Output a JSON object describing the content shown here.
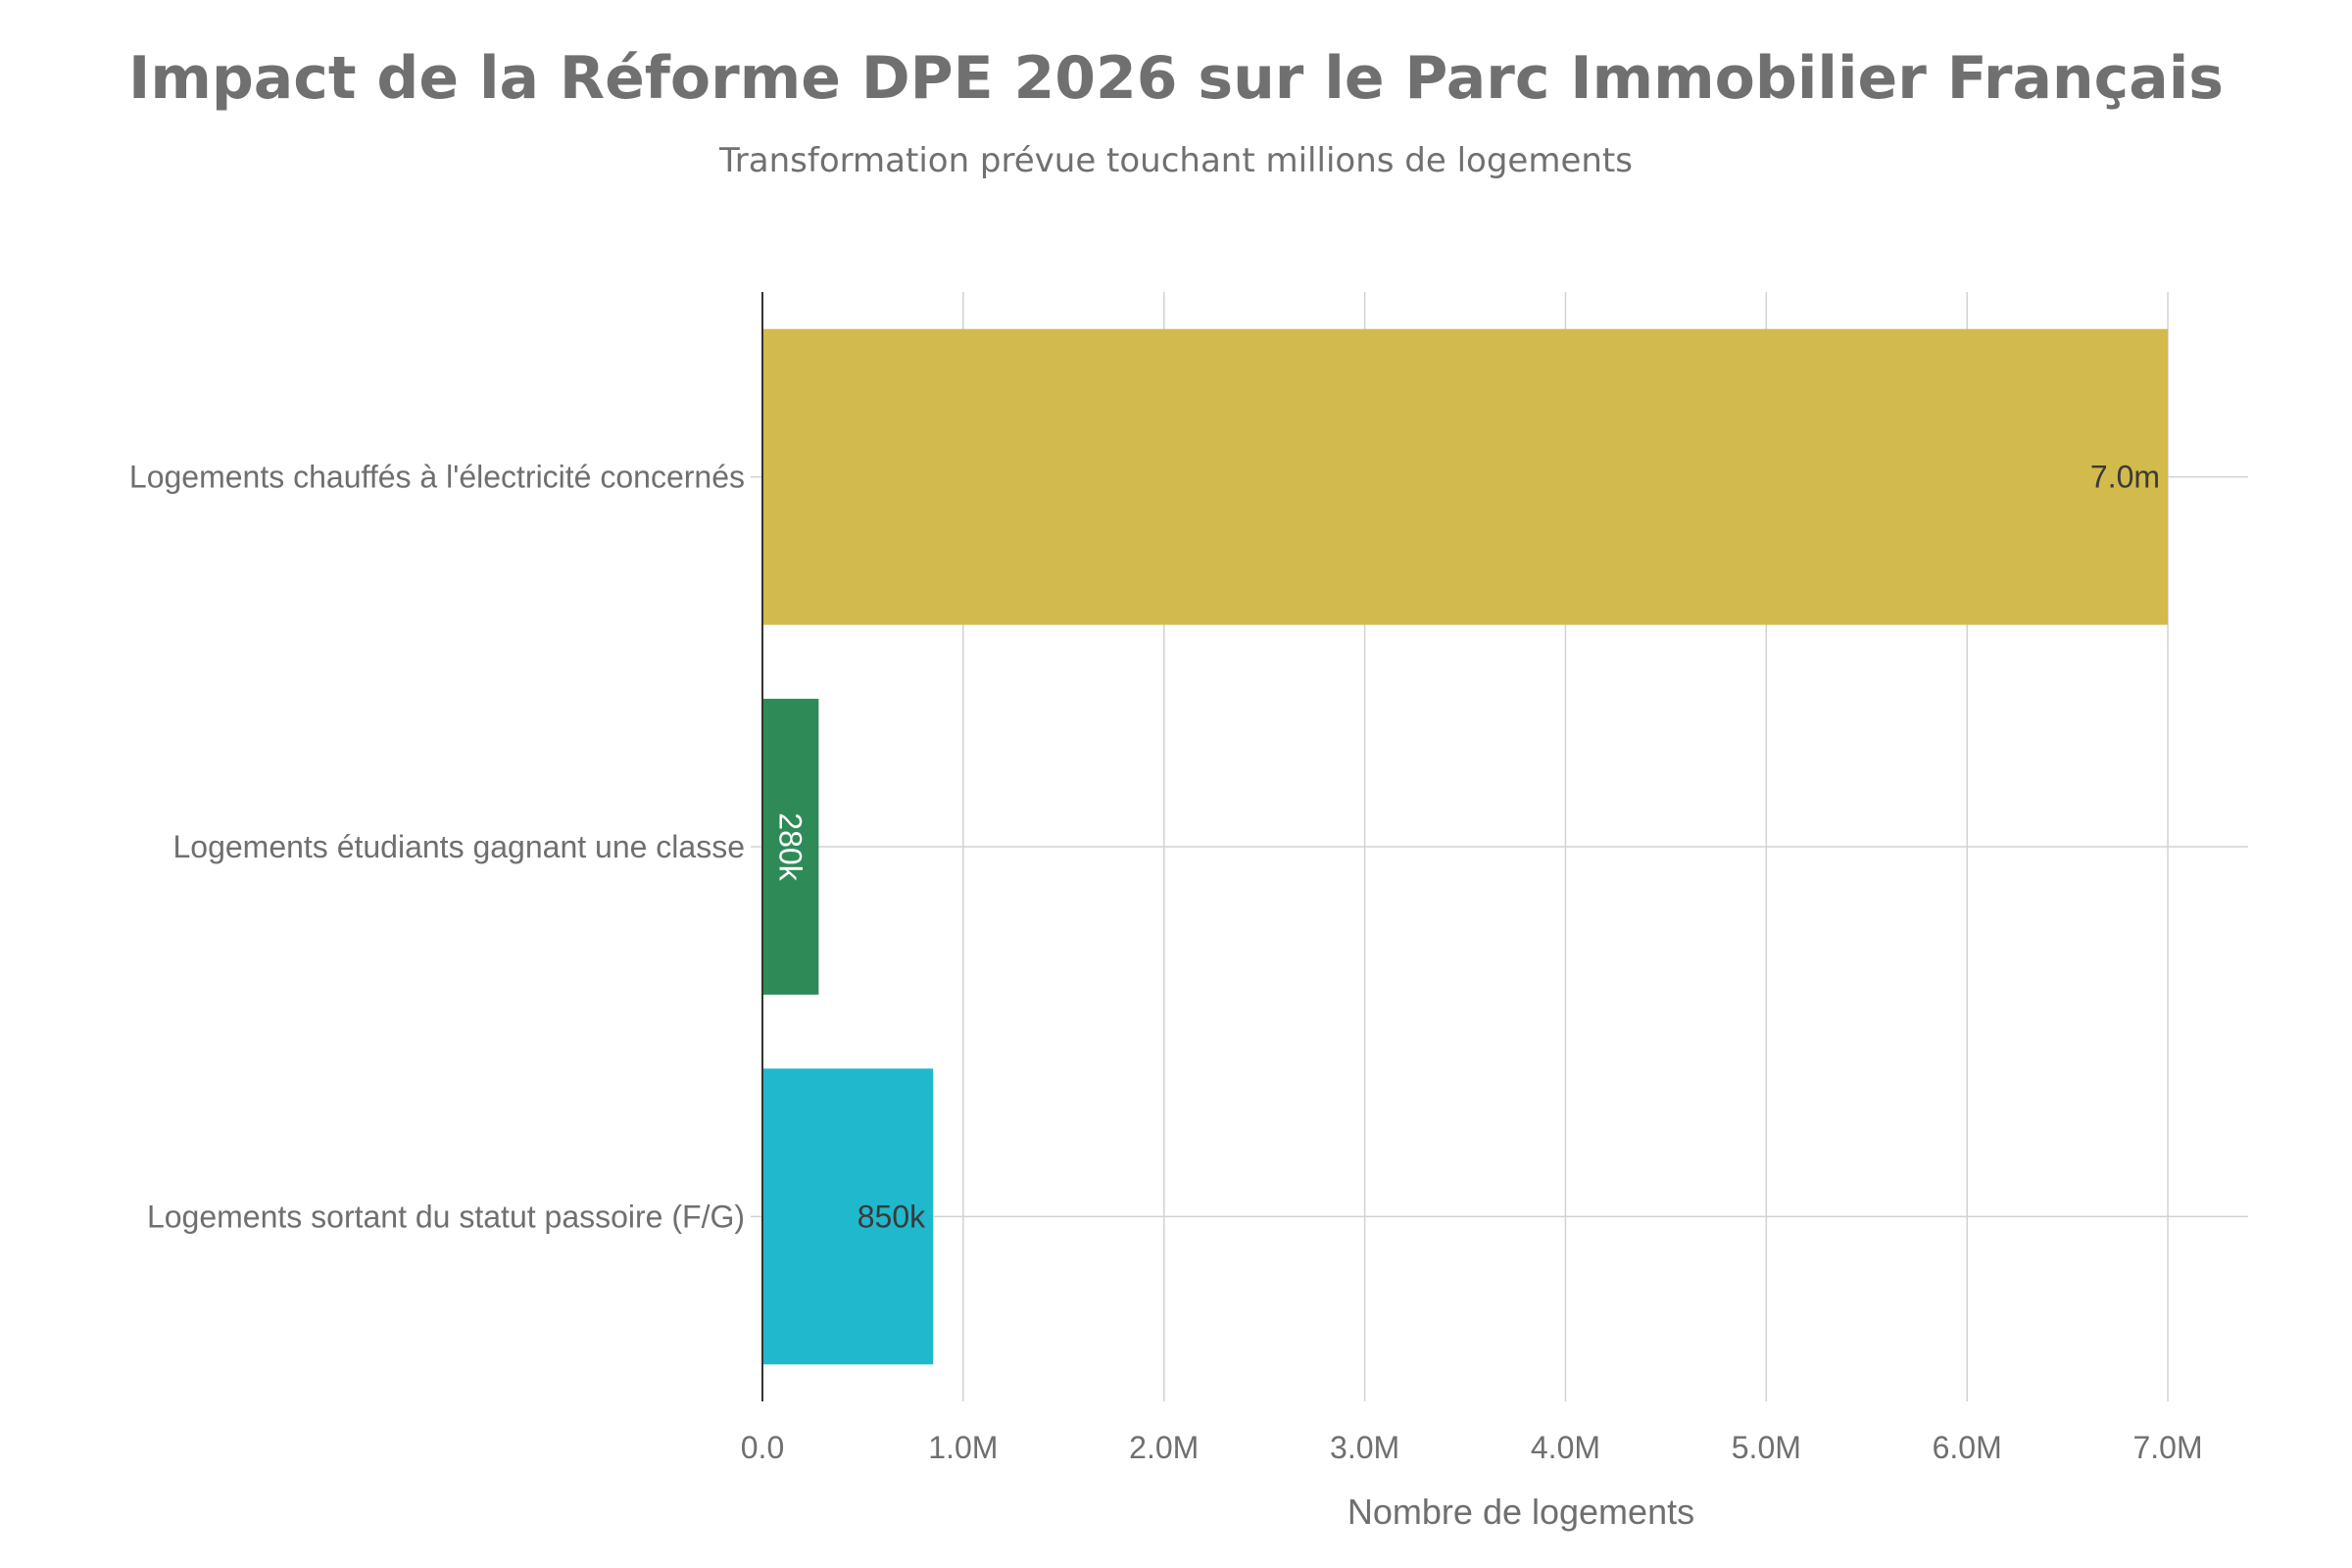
{
  "chart_data": {
    "type": "bar",
    "orientation": "horizontal",
    "title": "Impact de la Réforme DPE 2026 sur le Parc Immobilier Français",
    "subtitle": "Transformation prévue touchant millions de logements",
    "xlabel": "Nombre de logements",
    "ylabel": "",
    "xlim": [
      0,
      7400000
    ],
    "x_ticks": [
      0,
      1000000,
      2000000,
      3000000,
      4000000,
      5000000,
      6000000,
      7000000
    ],
    "x_tick_labels": [
      "0.0",
      "1.0M",
      "2.0M",
      "3.0M",
      "4.0M",
      "5.0M",
      "6.0M",
      "7.0M"
    ],
    "grid": true,
    "categories": [
      "Logements chauffés à l'électricité concernés",
      "Logements étudiants gagnant une classe",
      "Logements sortant du statut passoire (F/G)"
    ],
    "values": [
      7000000,
      280000,
      850000
    ],
    "data_labels": [
      "7.0m",
      "280k",
      "850k"
    ],
    "colors": [
      "#D2BA4C",
      "#2E8B57",
      "#1FB8CD"
    ],
    "label_colors": [
      "#3a3a3a",
      "#ffffff",
      "#3a3a3a"
    ],
    "label_rotated": [
      false,
      true,
      false
    ]
  }
}
